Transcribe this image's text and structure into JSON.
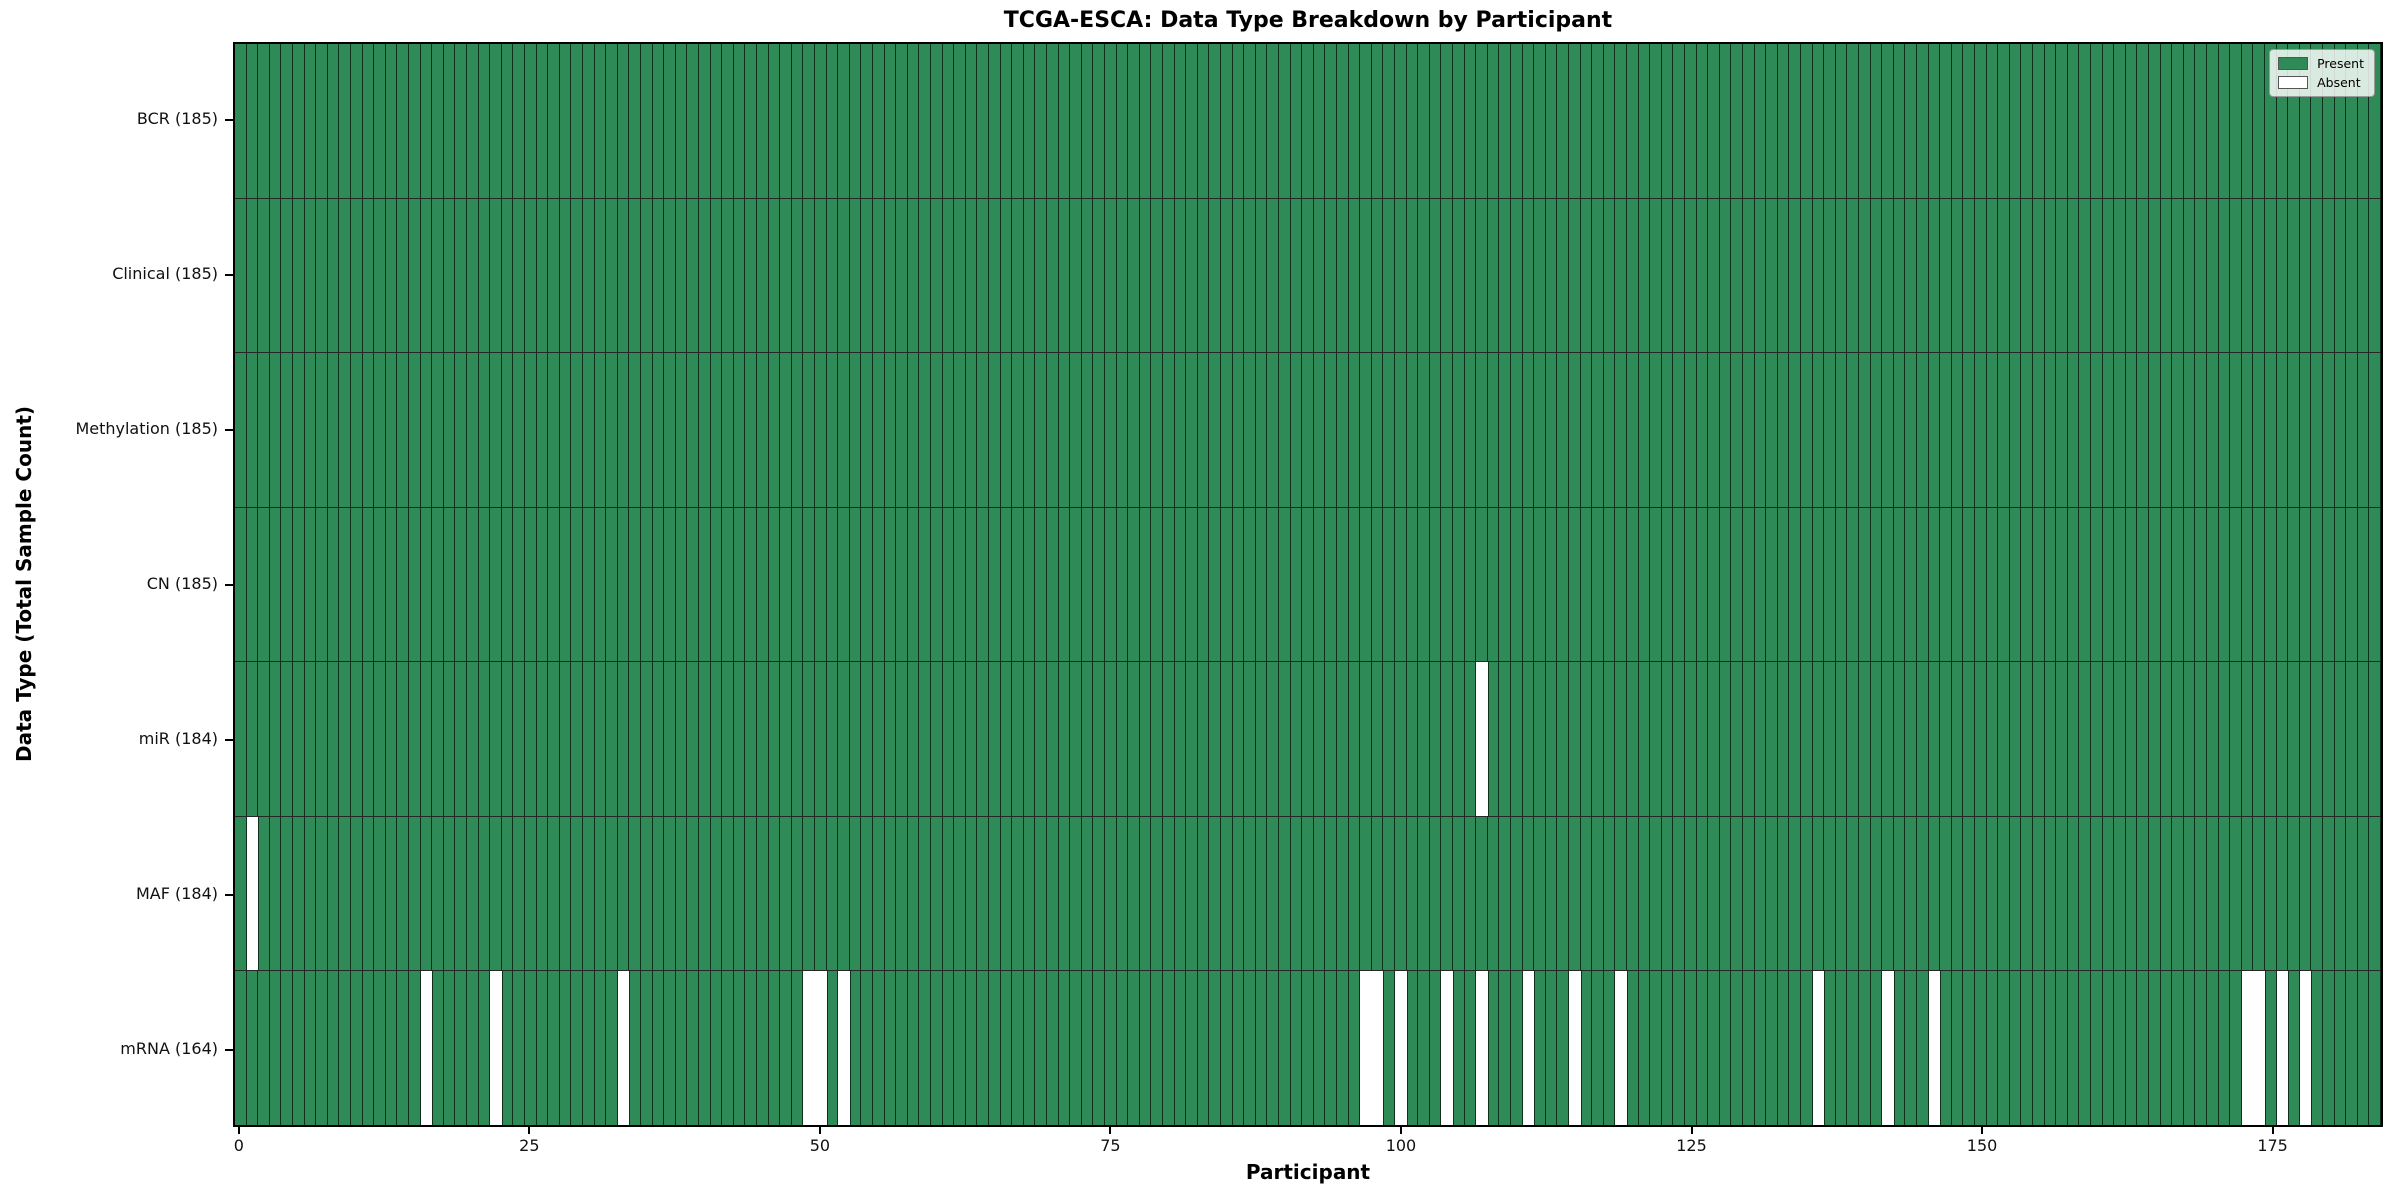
{
  "title": "TCGA-ESCA: Data Type Breakdown by Participant",
  "chart_data": {
    "type": "heatmap",
    "title": "TCGA-ESCA: Data Type Breakdown by Participant",
    "xlabel": "Participant",
    "ylabel": "Data Type (Total Sample Count)",
    "n_participants": 185,
    "x_range": [
      -0.5,
      184.5
    ],
    "x_ticks": [
      0,
      25,
      50,
      75,
      100,
      125,
      150,
      175
    ],
    "grid": "per-cell vertical edges",
    "legend": {
      "position": "upper right",
      "present_label": "Present",
      "absent_label": "Absent"
    },
    "colors": {
      "present": "#2e8b57",
      "absent": "#ffffff",
      "edge": "rgba(0,0,0,0.65)",
      "row_divider": "rgba(0,0,0,0.85)",
      "spine": "#000000",
      "background": "#ffffff"
    },
    "rows": [
      {
        "key": "bcr",
        "label": "BCR (185)",
        "data_type": "BCR",
        "total_count": 185,
        "absent_participants": []
      },
      {
        "key": "clinical",
        "label": "Clinical (185)",
        "data_type": "Clinical",
        "total_count": 185,
        "absent_participants": []
      },
      {
        "key": "methylation",
        "label": "Methylation (185)",
        "data_type": "Methylation",
        "total_count": 185,
        "absent_participants": []
      },
      {
        "key": "cn",
        "label": "CN (185)",
        "data_type": "CN",
        "total_count": 185,
        "absent_participants": []
      },
      {
        "key": "mir",
        "label": "miR (184)",
        "data_type": "miR",
        "total_count": 184,
        "absent_participants": [
          107
        ]
      },
      {
        "key": "maf",
        "label": "MAF (184)",
        "data_type": "MAF",
        "total_count": 184,
        "absent_participants": [
          1
        ]
      },
      {
        "key": "mrna",
        "label": "mRNA (164)",
        "data_type": "mRNA",
        "total_count": 164,
        "absent_participants": [
          16,
          22,
          33,
          49,
          50,
          52,
          97,
          98,
          100,
          104,
          107,
          111,
          115,
          119,
          136,
          142,
          146,
          173,
          174,
          176,
          178
        ]
      }
    ]
  }
}
